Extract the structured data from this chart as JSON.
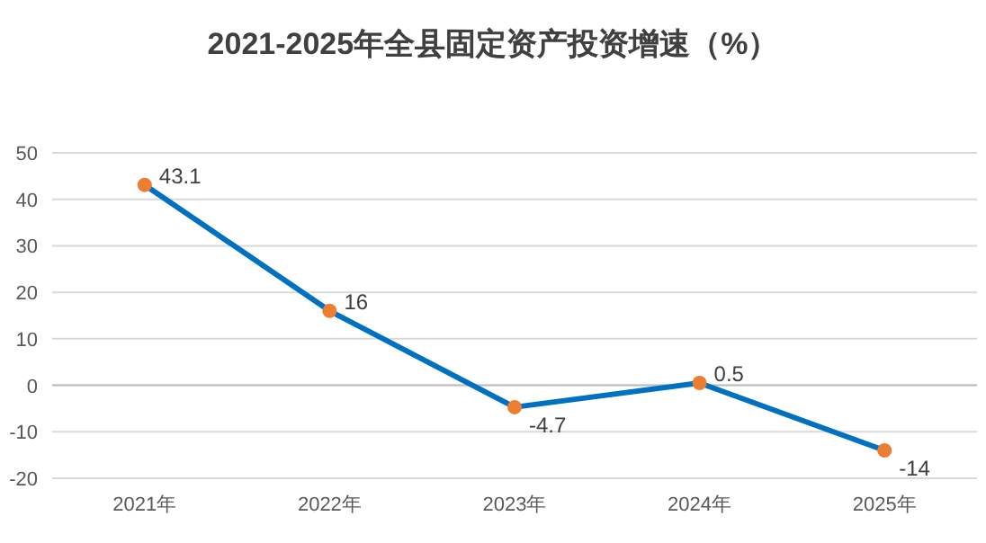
{
  "chart_data": {
    "type": "line",
    "title": "2021-2025年全县固定资产投资增速（%）",
    "categories": [
      "2021年",
      "2022年",
      "2023年",
      "2024年",
      "2025年"
    ],
    "series": [
      {
        "color": "#0070c0",
        "values": [
          43.1,
          16,
          -4.7,
          0.5,
          -14
        ]
      }
    ],
    "ylim": [
      -20,
      50
    ],
    "yticks": [
      -20,
      -10,
      0,
      10,
      20,
      30,
      40,
      50
    ],
    "grid": "y",
    "marker": "circle",
    "line_style": "solid",
    "data_labels": true
  }
}
